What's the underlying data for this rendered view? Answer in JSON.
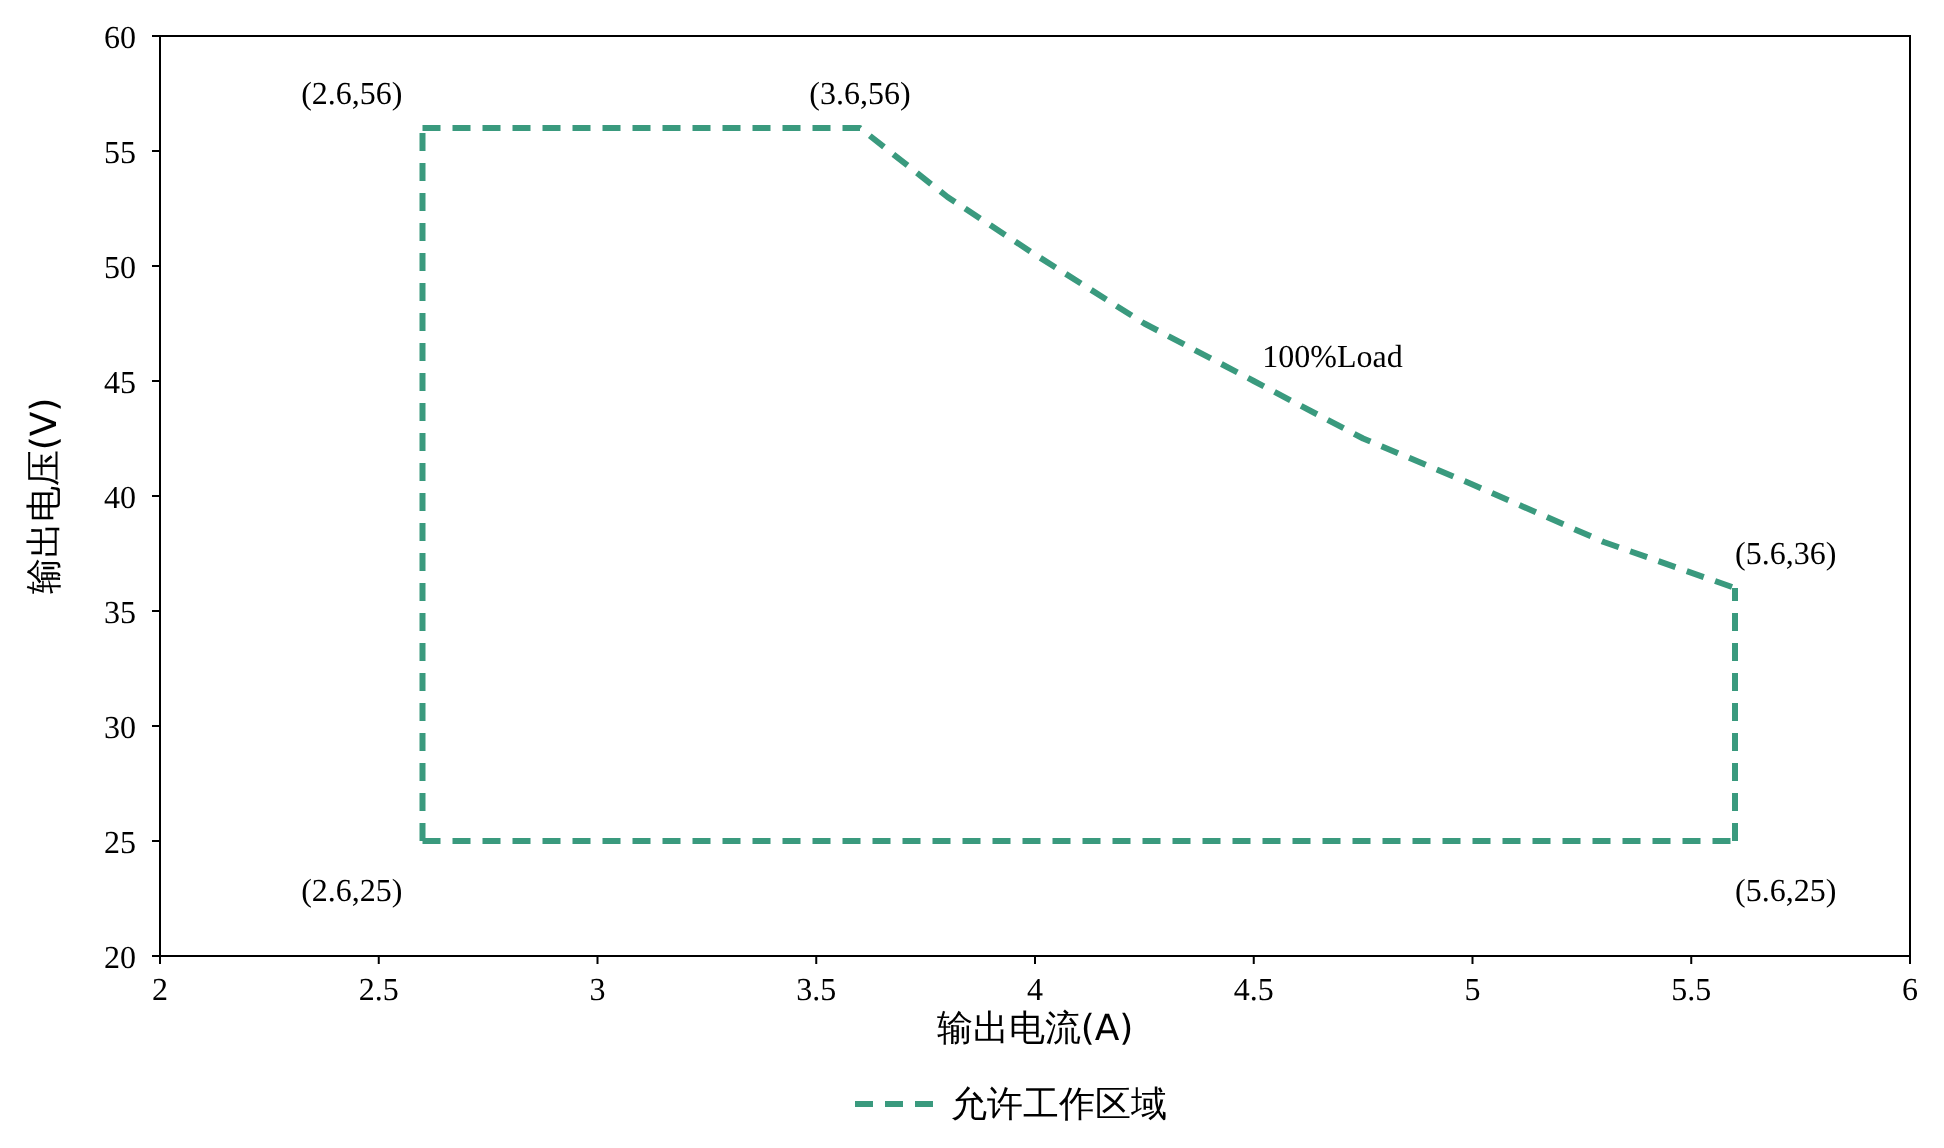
{
  "chart_data": {
    "type": "line",
    "xlabel": "输出电流(A)",
    "ylabel": "输出电压(V)",
    "xlim": [
      2,
      6
    ],
    "xticks": [
      2,
      2.5,
      3,
      3.5,
      4,
      4.5,
      5,
      5.5,
      6
    ],
    "ylim": [
      20,
      60
    ],
    "yticks": [
      20,
      25,
      30,
      35,
      40,
      45,
      50,
      55,
      60
    ],
    "series": [
      {
        "name": "允许工作区域",
        "color": "#3a9a7e",
        "line_style": "dashed",
        "x": [
          2.6,
          3.6,
          3.8,
          4,
          4.25,
          4.5,
          4.75,
          5,
          5.3,
          5.6
        ],
        "values": [
          56,
          56,
          53,
          50.5,
          47.5,
          45,
          42.5,
          40.5,
          38,
          36
        ]
      },
      {
        "color": "#3a9a7e",
        "line_style": "dashed",
        "x": [
          2.6,
          5.6
        ],
        "values": [
          25,
          25
        ]
      },
      {
        "color": "#3a9a7e",
        "line_style": "dashed",
        "x": [
          2.6,
          2.6
        ],
        "values": [
          25,
          56
        ]
      },
      {
        "color": "#3a9a7e",
        "line_style": "dashed",
        "x": [
          5.6,
          5.6
        ],
        "values": [
          25,
          36
        ]
      }
    ],
    "annotations": [
      {
        "text": "(2.6,56)",
        "x": 2.6,
        "y": 56
      },
      {
        "text": "(3.6,56)",
        "x": 3.6,
        "y": 56
      },
      {
        "text": "(5.6,36)",
        "x": 5.6,
        "y": 36
      },
      {
        "text": "(2.6,25)",
        "x": 2.6,
        "y": 25
      },
      {
        "text": "(5.6,25)",
        "x": 5.6,
        "y": 25
      },
      "100%Load"
    ],
    "legend": "bottom",
    "grid": false,
    "marker": "none"
  }
}
